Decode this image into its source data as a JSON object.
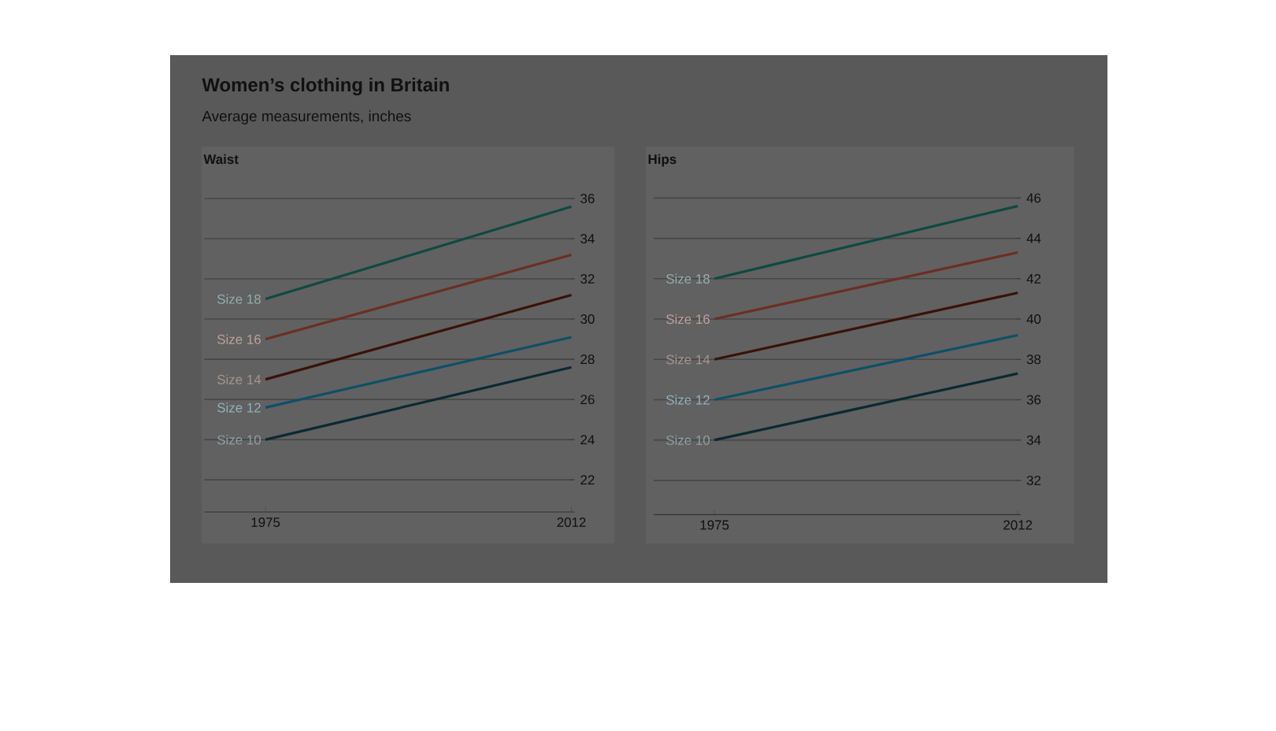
{
  "chart_data": [
    {
      "type": "line",
      "title": "Women’s clothing in Britain",
      "subtitle": "Average measurements, inches",
      "annotations": [
        "Waist"
      ],
      "categories": [
        "1975",
        "2012"
      ],
      "ylim": [
        20.4,
        36
      ],
      "yticks": [
        22,
        24,
        26,
        28,
        30,
        32,
        34,
        36
      ],
      "grid": "y",
      "series": [
        {
          "name": "Size 18",
          "color": "#0d4a42",
          "values": [
            31,
            35.6
          ]
        },
        {
          "name": "Size 16",
          "color": "#6b2f22",
          "values": [
            29,
            33.2
          ]
        },
        {
          "name": "Size 14",
          "color": "#3a1208",
          "values": [
            27,
            31.2
          ]
        },
        {
          "name": "Size 12",
          "color": "#0d5068",
          "values": [
            25.6,
            29.1
          ]
        },
        {
          "name": "Size 10",
          "color": "#0a2a33",
          "values": [
            24,
            27.6
          ]
        }
      ]
    },
    {
      "type": "line",
      "title": "Hips",
      "categories": [
        "1975",
        "2012"
      ],
      "ylim": [
        30.3,
        46
      ],
      "yticks": [
        32,
        34,
        36,
        38,
        40,
        42,
        44,
        46
      ],
      "grid": "y",
      "series": [
        {
          "name": "Size 18",
          "color": "#0d4a42",
          "values": [
            42,
            45.6
          ]
        },
        {
          "name": "Size 16",
          "color": "#6b2f22",
          "values": [
            40,
            43.3
          ]
        },
        {
          "name": "Size 14",
          "color": "#3a1208",
          "values": [
            38,
            41.3
          ]
        },
        {
          "name": "Size 12",
          "color": "#0d5068",
          "values": [
            36,
            39.2
          ]
        },
        {
          "name": "Size 10",
          "color": "#0a2a33",
          "values": [
            34,
            37.3
          ]
        }
      ]
    }
  ]
}
